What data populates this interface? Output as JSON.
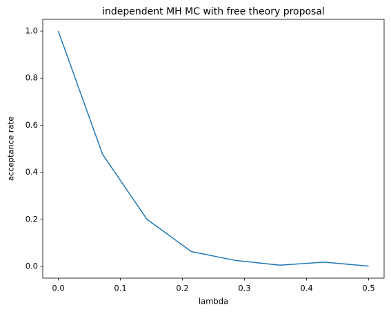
{
  "chart_data": {
    "type": "line",
    "title": "independent MH MC with free theory proposal",
    "x_label": "lambda",
    "y_label": "acceptance rate",
    "x": [
      0,
      0.0714,
      0.1429,
      0.2143,
      0.2857,
      0.3571,
      0.4286,
      0.5
    ],
    "series": [
      {
        "color": "#1f77b4",
        "values": [
          1.0,
          0.476,
          0.2,
          0.063,
          0.025,
          0.005,
          0.018,
          0.001
        ]
      }
    ],
    "xlim": [
      -0.025,
      0.525
    ],
    "ylim": [
      -0.05,
      1.05
    ],
    "xticks": [
      {
        "value": 0,
        "label": "0.0"
      },
      {
        "value": 0.1,
        "label": "0.1"
      },
      {
        "value": 0.2,
        "label": "0.2"
      },
      {
        "value": 0.3,
        "label": "0.3"
      },
      {
        "value": 0.4,
        "label": "0.4"
      },
      {
        "value": 0.5,
        "label": "0.5"
      }
    ],
    "yticks": [
      {
        "value": 0,
        "label": "0.0"
      },
      {
        "value": 0.2,
        "label": "0.2"
      },
      {
        "value": 0.4,
        "label": "0.4"
      },
      {
        "value": 0.6,
        "label": "0.6"
      },
      {
        "value": 0.8,
        "label": "0.8"
      },
      {
        "value": 1.0,
        "label": "1.0"
      }
    ]
  }
}
